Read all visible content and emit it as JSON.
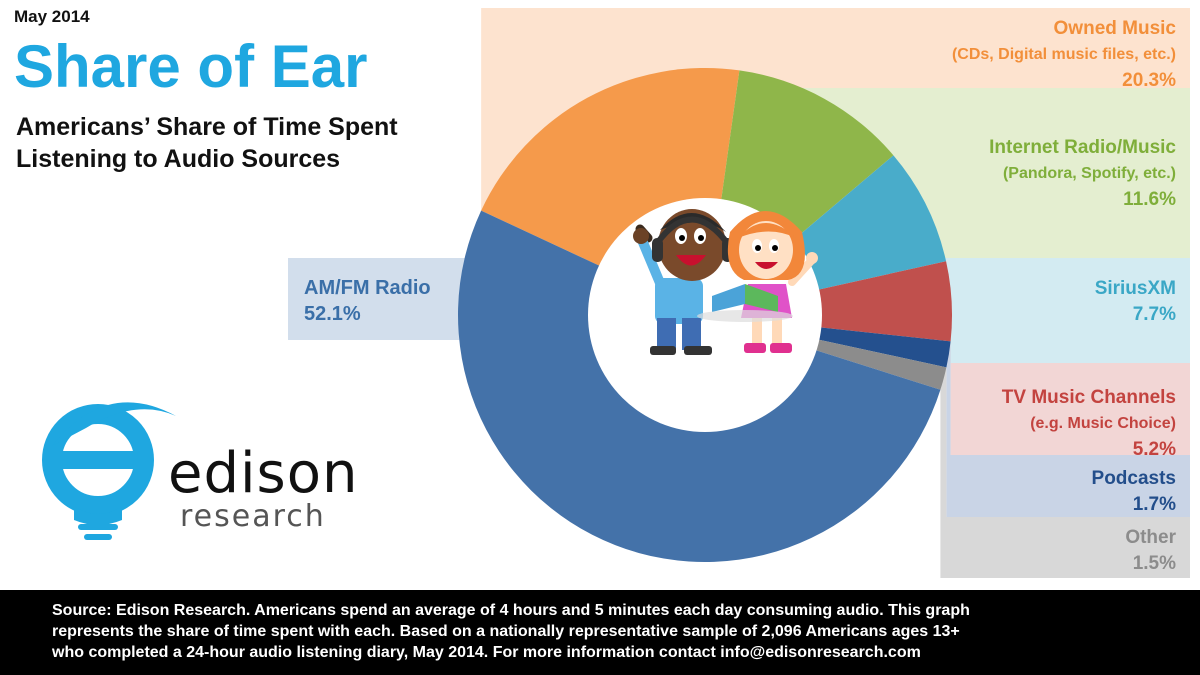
{
  "header": {
    "date": "May 2014",
    "title": "Share of Ear",
    "subtitle_line1": "Americans’ Share of Time Spent",
    "subtitle_line2": "Listening to Audio Sources"
  },
  "chart_data": {
    "type": "pie",
    "donut": true,
    "slices": [
      {
        "label": "Owned Music",
        "description": "(CDs, Digital music files, etc.)",
        "value": 20.3,
        "value_label": "20.3%",
        "color": "#f59a4b",
        "band_color": "#fde3cf"
      },
      {
        "label": "Internet Radio/Music",
        "description": "(Pandora, Spotify, etc.)",
        "value": 11.6,
        "value_label": "11.6%",
        "color": "#8fb64a",
        "band_color": "#e4eed0"
      },
      {
        "label": "SiriusXM",
        "description": "",
        "value": 7.7,
        "value_label": "7.7%",
        "color": "#49acca",
        "band_color": "#d3ebf2"
      },
      {
        "label": "TV Music Channels",
        "description": "(e.g. Music Choice)",
        "value": 5.2,
        "value_label": "5.2%",
        "color": "#c0504d",
        "band_color": "#f2d6d5"
      },
      {
        "label": "Podcasts",
        "description": "",
        "value": 1.7,
        "value_label": "1.7%",
        "color": "#24508e",
        "band_color": "#c9d4e6"
      },
      {
        "label": "Other",
        "description": "",
        "value": 1.5,
        "value_label": "1.5%",
        "color": "#8c8c8c",
        "band_color": "#d8d8d8"
      },
      {
        "label": "AM/FM Radio",
        "description": "",
        "value": 52.1,
        "value_label": "52.1%",
        "color": "#4472a9",
        "band_color": "#d2deec"
      }
    ],
    "center_image": "children-listening-illustration"
  },
  "logo": {
    "icon": "lightbulb-e-logo-icon",
    "word": "edison",
    "sub": "research",
    "color": "#1fa7e0"
  },
  "footer": {
    "line1": "Source: Edison Research.  Americans spend an average of 4 hours and 5 minutes each day consuming audio.  This graph",
    "line2": "represents the share of time spent with each.  Based on a nationally representative sample of 2,096 Americans ages 13+",
    "line3": "who completed a 24-hour audio listening diary, May 2014.  For more information contact info@edisonresearch.com"
  }
}
